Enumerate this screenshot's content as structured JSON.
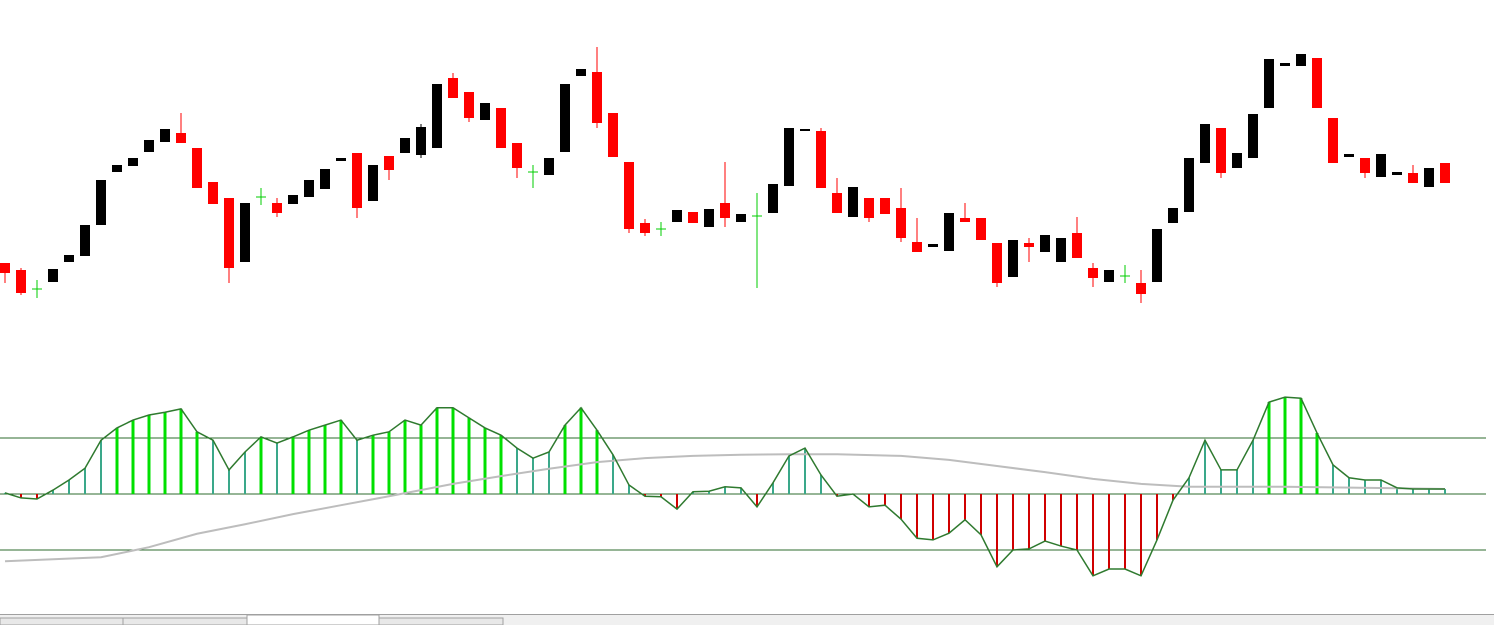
{
  "chart_data": [
    {
      "type": "candlestick",
      "ylim": [
        0,
        320
      ],
      "up_color": "#000000",
      "down_color": "#ff0000",
      "doji_color": "#00cc00",
      "open": [
        57,
        50,
        31,
        38,
        58,
        64,
        95,
        148,
        154,
        168,
        178,
        187,
        172,
        138,
        122,
        58,
        123,
        117,
        116,
        123,
        131,
        159,
        167,
        119,
        164,
        167,
        165,
        172,
        242,
        228,
        200,
        212,
        177,
        148,
        145,
        168,
        244,
        248,
        207,
        158,
        97,
        91,
        98,
        108,
        93,
        117,
        98,
        104,
        107,
        134,
        189,
        189,
        127,
        103,
        122,
        122,
        112,
        78,
        73,
        69,
        102,
        102,
        77,
        43,
        77,
        68,
        58,
        87,
        52,
        38,
        44,
        37,
        38,
        97,
        108,
        157,
        192,
        152,
        162,
        212,
        254,
        254,
        262,
        202,
        163,
        162,
        143,
        145,
        147,
        133,
        157
      ],
      "high": [
        57,
        52,
        40,
        51,
        65,
        95,
        140,
        155,
        162,
        180,
        191,
        207,
        172,
        138,
        122,
        117,
        132,
        122,
        125,
        140,
        151,
        162,
        167,
        155,
        164,
        182,
        196,
        236,
        247,
        228,
        217,
        212,
        177,
        155,
        162,
        236,
        251,
        273,
        207,
        158,
        101,
        98,
        110,
        108,
        111,
        158,
        106,
        127,
        136,
        192,
        191,
        192,
        142,
        133,
        122,
        122,
        132,
        102,
        76,
        107,
        117,
        102,
        77,
        80,
        82,
        85,
        82,
        103,
        57,
        50,
        55,
        50,
        91,
        112,
        162,
        196,
        192,
        167,
        206,
        261,
        257,
        266,
        262,
        202,
        166,
        162,
        166,
        148,
        155,
        152,
        157
      ],
      "low": [
        37,
        25,
        22,
        38,
        58,
        64,
        95,
        148,
        154,
        168,
        178,
        177,
        132,
        116,
        37,
        58,
        115,
        103,
        116,
        123,
        131,
        159,
        102,
        119,
        140,
        167,
        162,
        172,
        222,
        198,
        200,
        172,
        142,
        132,
        145,
        168,
        244,
        192,
        163,
        87,
        84,
        84,
        98,
        97,
        93,
        93,
        98,
        32,
        107,
        134,
        189,
        132,
        107,
        103,
        98,
        106,
        78,
        68,
        73,
        69,
        98,
        80,
        33,
        43,
        58,
        68,
        58,
        62,
        33,
        38,
        37,
        17,
        38,
        97,
        108,
        157,
        142,
        152,
        162,
        212,
        254,
        254,
        212,
        157,
        163,
        142,
        143,
        145,
        137,
        133,
        137
      ],
      "close": [
        47,
        27,
        31,
        51,
        65,
        95,
        140,
        155,
        162,
        180,
        191,
        177,
        132,
        116,
        52,
        117,
        123,
        107,
        125,
        140,
        151,
        162,
        112,
        155,
        150,
        182,
        193,
        236,
        222,
        202,
        217,
        172,
        152,
        148,
        162,
        236,
        251,
        197,
        163,
        91,
        87,
        91,
        110,
        97,
        111,
        102,
        106,
        104,
        136,
        192,
        191,
        132,
        107,
        133,
        102,
        106,
        82,
        68,
        76,
        107,
        98,
        80,
        37,
        80,
        73,
        85,
        82,
        62,
        42,
        50,
        44,
        26,
        91,
        112,
        162,
        196,
        147,
        167,
        206,
        261,
        257,
        266,
        212,
        157,
        166,
        147,
        166,
        148,
        137,
        152,
        137
      ]
    },
    {
      "type": "oscillator",
      "ylim": [
        -2,
        2
      ],
      "yticks": [
        -1,
        0,
        1
      ],
      "level_color": "#2e6b2e",
      "line_color": "#2f7a2f",
      "up_strong_color": "#00e000",
      "up_color": "#3aa88a",
      "down_color": "#d00000",
      "values": [
        0.02,
        -0.07,
        -0.09,
        0.07,
        0.25,
        0.46,
        0.96,
        1.18,
        1.32,
        1.41,
        1.46,
        1.52,
        1.11,
        0.96,
        0.43,
        0.75,
        1.02,
        0.91,
        1.02,
        1.14,
        1.23,
        1.32,
        0.96,
        1.05,
        1.11,
        1.32,
        1.23,
        1.54,
        1.54,
        1.36,
        1.18,
        1.05,
        0.82,
        0.64,
        0.75,
        1.23,
        1.54,
        1.14,
        0.7,
        0.16,
        -0.04,
        -0.05,
        -0.27,
        0.04,
        0.05,
        0.13,
        0.11,
        -0.23,
        0.2,
        0.68,
        0.82,
        0.34,
        -0.04,
        0,
        -0.23,
        -0.2,
        -0.45,
        -0.79,
        -0.82,
        -0.7,
        -0.46,
        -0.73,
        -1.3,
        -1.0,
        -0.98,
        -0.84,
        -0.93,
        -1.0,
        -1.46,
        -1.34,
        -1.34,
        -1.46,
        -0.82,
        -0.11,
        0.29,
        0.96,
        0.43,
        0.43,
        0.96,
        1.64,
        1.73,
        1.71,
        1.09,
        0.52,
        0.29,
        0.25,
        0.25,
        0.11,
        0.09,
        0.09,
        0.09
      ],
      "ma": {
        "color": "#bdbdbd",
        "x": [
          0,
          6,
          9,
          12,
          15,
          18,
          21,
          24,
          28,
          31,
          34,
          37,
          40,
          43,
          46,
          49,
          52,
          56,
          59,
          62,
          65,
          68,
          71,
          74,
          80,
          90
        ],
        "values": [
          -1.2,
          -1.13,
          -0.95,
          -0.71,
          -0.54,
          -0.36,
          -0.2,
          -0.04,
          0.18,
          0.32,
          0.45,
          0.57,
          0.64,
          0.68,
          0.7,
          0.71,
          0.71,
          0.68,
          0.61,
          0.5,
          0.39,
          0.27,
          0.18,
          0.13,
          0.13,
          0.09
        ]
      }
    }
  ]
}
